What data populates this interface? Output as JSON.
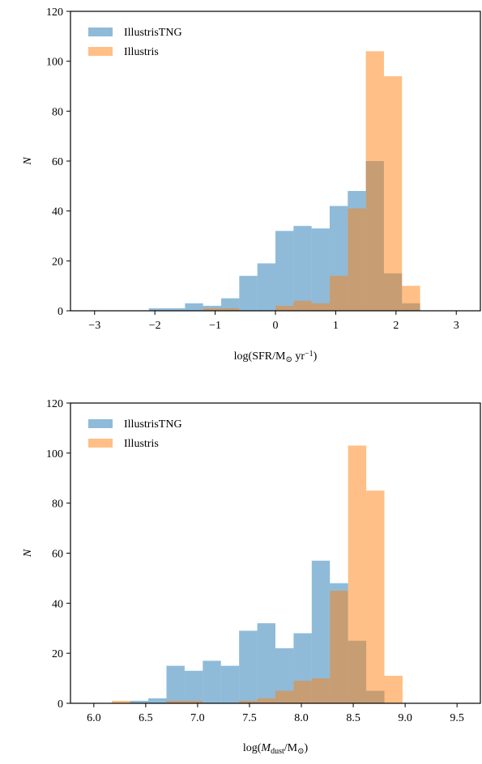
{
  "chart_data": [
    {
      "type": "histogram",
      "xlabel": [
        "log(SFR/M",
        "⊙",
        " yr",
        "−1",
        ")"
      ],
      "ylabel": "N",
      "bins": [
        -3,
        -2.7,
        -2.4,
        -2.1,
        -1.8,
        -1.5,
        -1.2,
        -0.9,
        -0.6,
        -0.3,
        0,
        0.3,
        0.6,
        0.9,
        1.2,
        1.5,
        1.8,
        2.1,
        2.4,
        2.7,
        3
      ],
      "series": [
        {
          "name": "IllustrisTNG",
          "color": "#1f77b4",
          "values": [
            0,
            0,
            0,
            1,
            1,
            3,
            2,
            5,
            14,
            19,
            32,
            34,
            33,
            42,
            48,
            60,
            15,
            3,
            0,
            0
          ]
        },
        {
          "name": "Illustris",
          "color": "#ff7f0e",
          "values": [
            0,
            0,
            0,
            0,
            0,
            0,
            1,
            1,
            0,
            0,
            2,
            4,
            3,
            14,
            41,
            104,
            94,
            10,
            0,
            0
          ]
        }
      ],
      "xlim": [
        -3.4,
        3.4
      ],
      "ylim": [
        0,
        120
      ],
      "xticks": [
        {
          "value": -3,
          "label": "−3"
        },
        {
          "value": -2,
          "label": "−2"
        },
        {
          "value": -1,
          "label": "−1"
        },
        0,
        1,
        2,
        3
      ],
      "yticks": [
        0,
        20,
        40,
        60,
        80,
        100,
        120
      ],
      "legend": "upper left"
    },
    {
      "type": "histogram",
      "xlabel": [
        "log(",
        "M",
        "dust",
        "/M",
        "⊙",
        ")"
      ],
      "ylabel": "N",
      "bins": [
        6.0,
        6.175,
        6.35,
        6.525,
        6.7,
        6.875,
        7.05,
        7.225,
        7.4,
        7.575,
        7.75,
        7.925,
        8.1,
        8.275,
        8.45,
        8.625,
        8.8,
        8.975,
        9.15,
        9.325,
        9.5
      ],
      "series": [
        {
          "name": "IllustrisTNG",
          "color": "#1f77b4",
          "values": [
            0,
            0,
            1,
            2,
            15,
            13,
            17,
            15,
            29,
            32,
            22,
            28,
            57,
            48,
            25,
            5,
            0,
            0,
            0,
            0
          ]
        },
        {
          "name": "Illustris",
          "color": "#ff7f0e",
          "values": [
            0,
            1,
            0,
            0,
            1,
            1,
            0,
            0,
            1,
            2,
            5,
            9,
            10,
            45,
            103,
            85,
            11,
            0,
            0,
            0
          ]
        }
      ],
      "xlim": [
        5.775,
        9.725
      ],
      "ylim": [
        0,
        120
      ],
      "xticks": [
        {
          "value": 6,
          "label": "6.0"
        },
        6.5,
        {
          "value": 7,
          "label": "7.0"
        },
        7.5,
        {
          "value": 8,
          "label": "8.0"
        },
        8.5,
        {
          "value": 9,
          "label": "9.0"
        },
        9.5
      ],
      "yticks": [
        0,
        20,
        40,
        60,
        80,
        100,
        120
      ],
      "legend": "upper left"
    }
  ]
}
